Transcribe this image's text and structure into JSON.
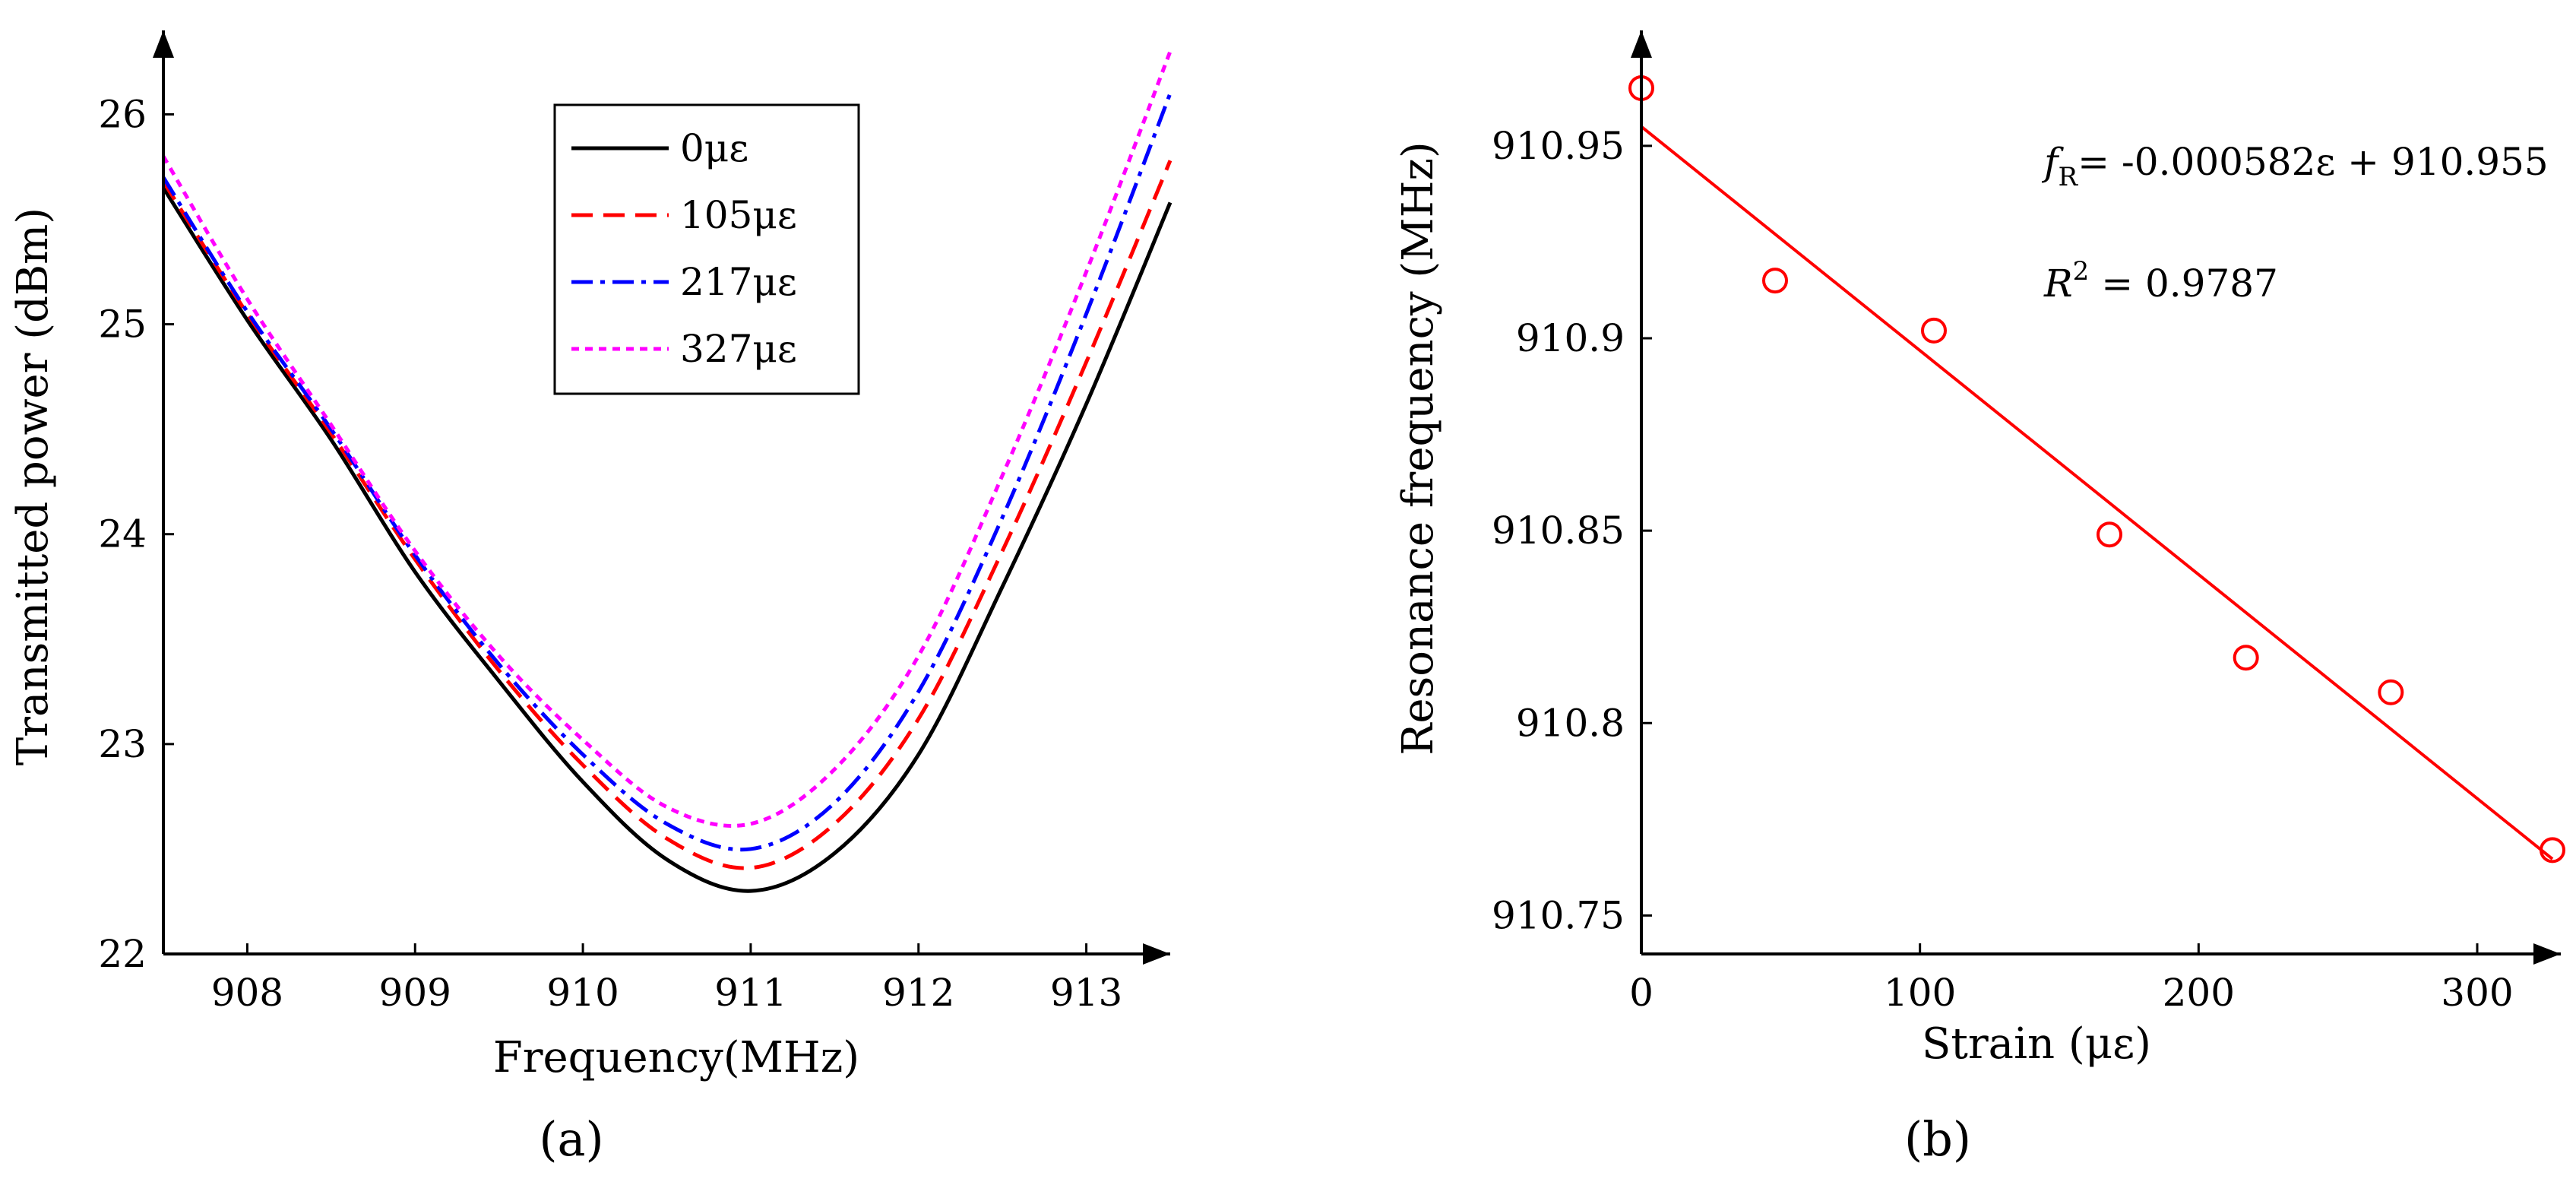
{
  "chart_data": [
    {
      "type": "line",
      "panel_label": "(a)",
      "xlabel": "Frequency(MHz)",
      "ylabel": "Transmitted power (dBm)",
      "xlim": [
        907.5,
        913.5
      ],
      "ylim": [
        22,
        26.4
      ],
      "xticks": [
        908,
        909,
        910,
        911,
        912,
        913
      ],
      "yticks": [
        22,
        23,
        24,
        25,
        26
      ],
      "x": [
        907.5,
        908.0,
        908.5,
        909.0,
        909.5,
        910.0,
        910.5,
        911.0,
        911.5,
        912.0,
        912.5,
        913.0,
        913.5
      ],
      "series": [
        {
          "name": "0με",
          "color": "#000000",
          "dash": "solid",
          "values": [
            25.65,
            25.02,
            24.45,
            23.82,
            23.3,
            22.82,
            22.45,
            22.3,
            22.48,
            22.95,
            23.75,
            24.62,
            25.58
          ]
        },
        {
          "name": "105με",
          "color": "#ff0000",
          "dash": "dash",
          "values": [
            25.68,
            25.05,
            24.48,
            23.88,
            23.35,
            22.9,
            22.55,
            22.41,
            22.62,
            23.12,
            23.92,
            24.82,
            25.78
          ]
        },
        {
          "name": "217με",
          "color": "#0000ff",
          "dash": "dashdot",
          "values": [
            25.7,
            25.06,
            24.5,
            23.9,
            23.38,
            22.95,
            22.62,
            22.5,
            22.72,
            23.25,
            24.08,
            25.05,
            26.1
          ]
        },
        {
          "name": "327με",
          "color": "#ff00ff",
          "dash": "dot",
          "values": [
            25.8,
            25.12,
            24.52,
            23.92,
            23.42,
            23.02,
            22.7,
            22.62,
            22.88,
            23.42,
            24.28,
            25.25,
            26.3
          ]
        }
      ],
      "legend": "top-center"
    },
    {
      "type": "scatter",
      "panel_label": "(b)",
      "xlabel": "Strain (με)",
      "ylabel": "Resonance frequency (MHz)",
      "xlim": [
        0,
        330
      ],
      "ylim": [
        910.74,
        910.98
      ],
      "xticks": [
        0,
        100,
        200,
        300
      ],
      "yticks": [
        910.75,
        910.8,
        910.85,
        910.9,
        910.95
      ],
      "ytick_labels": [
        "910.75",
        "910.8",
        "910.85",
        "910.9",
        "910.95"
      ],
      "points": {
        "x": [
          0,
          48,
          105,
          168,
          217,
          269,
          327
        ],
        "y": [
          910.965,
          910.915,
          910.902,
          910.849,
          910.817,
          910.808,
          910.767
        ],
        "color": "#ff0000",
        "marker": "open-circle"
      },
      "fit": {
        "slope": -0.000582,
        "intercept": 910.955,
        "x_range": [
          0,
          327
        ],
        "color": "#ff0000"
      },
      "equation": {
        "f": "f",
        "sub": "R",
        "rest": "= -0.000582ε + 910.955"
      },
      "r2": {
        "r": "R",
        "sup": "2",
        "rest": " = 0.9787"
      }
    }
  ]
}
